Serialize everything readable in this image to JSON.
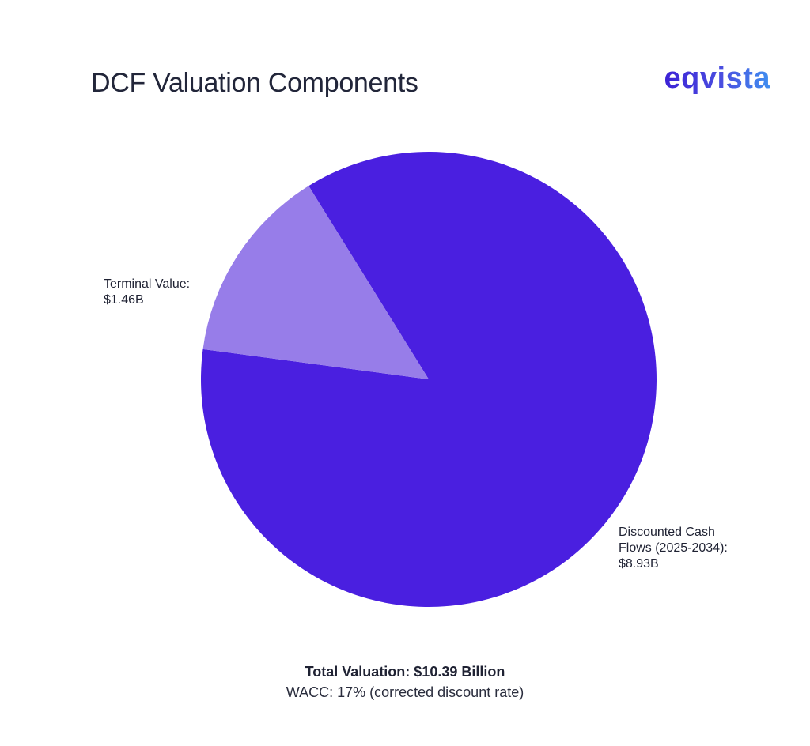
{
  "header": {
    "title": "DCF Valuation Components",
    "logo_text": "eqvista"
  },
  "chart_data": {
    "type": "pie",
    "title": "DCF Valuation Components",
    "slices": [
      {
        "name": "Discounted Cash Flows (2025-2034)",
        "value": 8.93,
        "label_line1": "Discounted Cash",
        "label_line2": "Flows (2025-2034):",
        "label_line3": "$8.93B",
        "color": "#4a1fe0"
      },
      {
        "name": "Terminal Value",
        "value": 1.46,
        "label_line1": "Terminal Value:",
        "label_line2": "$1.46B",
        "color": "#977de9"
      }
    ]
  },
  "footer": {
    "total": "Total Valuation: $10.39 Billion",
    "wacc": "WACC: 17% (corrected discount rate)"
  },
  "colors": {
    "primary_slice": "#4a1fe0",
    "secondary_slice": "#977de9",
    "logo_gradient_start": "#3c22d6",
    "logo_gradient_end": "#3f8ff0"
  }
}
